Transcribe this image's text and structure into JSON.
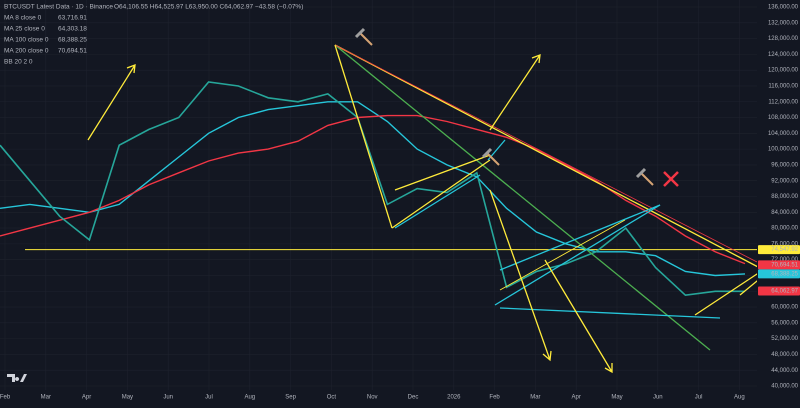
{
  "chart_data": {
    "type": "line",
    "title": "BTCUSDT Latest Data · 1D · Binance",
    "ohlc_text": "O64,106.55 H64,525.97 L63,950.00 C64,062.97 −43.58 (−0.07%)",
    "legend_items": [
      {
        "name": "MA 8 close 0",
        "value_text": "63,716.91",
        "color": "#ff9800"
      },
      {
        "name": "MA 25 close 0",
        "value_text": "64,303.18",
        "color": "#e040fb"
      },
      {
        "name": "MA 100 close 0",
        "value_text": "68,388.25",
        "color": "#26c6da"
      },
      {
        "name": "MA 200 close 0",
        "value_text": "70,694.51",
        "color": "#f23645"
      },
      {
        "name": "BB 20 2 0",
        "color": "#787b86"
      }
    ],
    "x_labels": [
      "Feb",
      "Mar",
      "Apr",
      "May",
      "Jun",
      "Jul",
      "Aug",
      "Sep",
      "Oct",
      "Nov",
      "Dec",
      "2026",
      "Feb",
      "Mar",
      "Apr",
      "May",
      "Jun",
      "Jul",
      "Aug"
    ],
    "ylim": [
      40000,
      136000
    ],
    "yticks": [
      {
        "value": 40000,
        "label": "40,000.00"
      },
      {
        "value": 44000,
        "label": "44,000.00"
      },
      {
        "value": 48000,
        "label": "48,000.00"
      },
      {
        "value": 52000,
        "label": "52,000.00"
      },
      {
        "value": 56000,
        "label": "56,000.00"
      },
      {
        "value": 60000,
        "label": "60,000.00"
      },
      {
        "value": 64000,
        "label": "64,000.00"
      },
      {
        "value": 68000,
        "label": "68,000.00"
      },
      {
        "value": 72000,
        "label": "72,000.00"
      },
      {
        "value": 76000,
        "label": "76,000.00"
      },
      {
        "value": 80000,
        "label": "80,000.00"
      },
      {
        "value": 84000,
        "label": "84,000.00"
      },
      {
        "value": 88000,
        "label": "88,000.00"
      },
      {
        "value": 92000,
        "label": "92,000.00"
      },
      {
        "value": 96000,
        "label": "96,000.00"
      },
      {
        "value": 100000,
        "label": "100,000.00"
      },
      {
        "value": 104000,
        "label": "104,000.00"
      },
      {
        "value": 108000,
        "label": "108,000.00"
      },
      {
        "value": 112000,
        "label": "112,000.00"
      },
      {
        "value": 116000,
        "label": "116,000.00"
      },
      {
        "value": 120000,
        "label": "120,000.00"
      },
      {
        "value": 124000,
        "label": "124,000.00"
      },
      {
        "value": 128000,
        "label": "128,000.00"
      },
      {
        "value": 132000,
        "label": "132,000.00"
      },
      {
        "value": 136000,
        "label": "136,000.00"
      }
    ],
    "price": {
      "color": "#26a69a",
      "values": [
        101000,
        92000,
        83000,
        77000,
        101000,
        105000,
        108000,
        117000,
        116000,
        113000,
        112000,
        114000,
        108000,
        86000,
        90000,
        89000,
        94000,
        65000,
        69000,
        71000,
        74000,
        80000,
        70000,
        63000,
        64000,
        64000
      ]
    },
    "series": [
      {
        "name": "MA 100 close 0",
        "color": "#26c6da",
        "values": [
          85000,
          86000,
          85000,
          84000,
          86000,
          92000,
          98000,
          104000,
          108000,
          110000,
          111000,
          112000,
          112000,
          107000,
          100000,
          96000,
          93000,
          85000,
          79000,
          76000,
          74000,
          74000,
          73000,
          69000,
          68000,
          68400
        ]
      },
      {
        "name": "MA 200 close 0",
        "color": "#f23645",
        "values": [
          78000,
          80000,
          82000,
          84000,
          87000,
          91000,
          94000,
          97000,
          99000,
          100000,
          102000,
          106000,
          108000,
          108500,
          108500,
          107000,
          105000,
          103000,
          100000,
          96000,
          92000,
          87000,
          83000,
          78000,
          74000,
          71000
        ]
      }
    ],
    "horizontal_line": {
      "value": 74547.92,
      "color": "#ffeb3b"
    },
    "price_labels": [
      {
        "value": 74547.92,
        "label": "74,547.92",
        "color": "#ffeb3b"
      },
      {
        "value": 70694.51,
        "label": "70,694.51",
        "color": "#f23645"
      },
      {
        "value": 68388.25,
        "label": "68,388.25",
        "color": "#26c6da"
      },
      {
        "value": 64062.97,
        "label": "64,062.97",
        "color": "#f23645"
      }
    ]
  }
}
